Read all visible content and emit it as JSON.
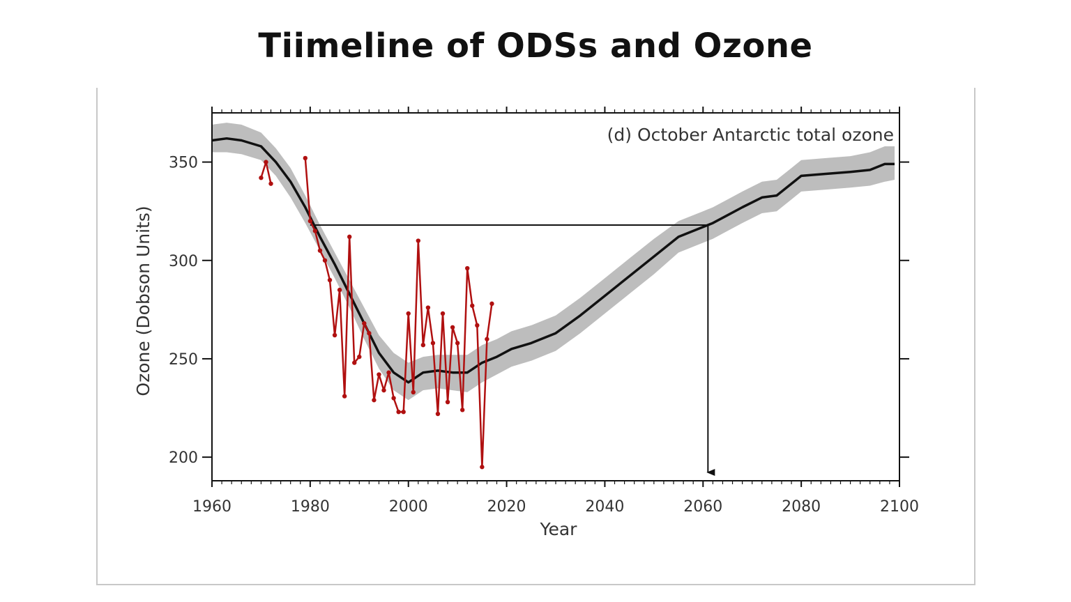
{
  "page": {
    "title": "Tiimeline of ODSs and Ozone"
  },
  "chart_data": {
    "type": "line",
    "panel_label": "(d) October Antarctic total ozone",
    "xlabel": "Year",
    "ylabel": "Ozone (Dobson Units)",
    "xlim": [
      1960,
      2100
    ],
    "ylim": [
      188,
      375
    ],
    "x_ticks": [
      1960,
      1980,
      2000,
      2020,
      2040,
      2060,
      2080,
      2100
    ],
    "y_ticks": [
      200,
      250,
      300,
      350
    ],
    "grid": false,
    "colors": {
      "model_mean": "#111111",
      "model_range": "#bdbdbd",
      "observations": "#b01010",
      "reference_lines": "#111111"
    },
    "series": [
      {
        "kind": "model-mean",
        "x": [
          1960,
          1963,
          1966,
          1970,
          1973,
          1976,
          1979,
          1982,
          1985,
          1988,
          1991,
          1994,
          1997,
          2000,
          2003,
          2006,
          2009,
          2012,
          2015,
          2018,
          2021,
          2025,
          2030,
          2035,
          2040,
          2045,
          2050,
          2055,
          2060,
          2062,
          2065,
          2068,
          2072,
          2075,
          2078,
          2080,
          2085,
          2090,
          2094,
          2097,
          2099
        ],
        "y": [
          361,
          362,
          361,
          358,
          350,
          340,
          327,
          312,
          298,
          283,
          268,
          253,
          243,
          238,
          243,
          244,
          243,
          243,
          248,
          251,
          255,
          258,
          263,
          272,
          282,
          292,
          302,
          312,
          317,
          319,
          323,
          327,
          332,
          333,
          339,
          343,
          344,
          345,
          346,
          349,
          349
        ]
      },
      {
        "kind": "model-range",
        "x": [
          1960,
          1963,
          1966,
          1970,
          1973,
          1976,
          1979,
          1982,
          1985,
          1988,
          1991,
          1994,
          1997,
          2000,
          2003,
          2006,
          2009,
          2012,
          2015,
          2018,
          2021,
          2025,
          2030,
          2035,
          2040,
          2045,
          2050,
          2055,
          2060,
          2062,
          2065,
          2068,
          2072,
          2075,
          2078,
          2080,
          2085,
          2090,
          2094,
          2097,
          2099
        ],
        "upper": [
          369,
          370,
          369,
          365,
          357,
          347,
          333,
          318,
          304,
          290,
          276,
          262,
          253,
          248,
          251,
          252,
          252,
          252,
          257,
          260,
          264,
          267,
          272,
          281,
          291,
          301,
          311,
          320,
          325,
          327,
          331,
          335,
          340,
          341,
          347,
          351,
          352,
          353,
          355,
          358,
          358
        ],
        "lower": [
          355,
          355,
          354,
          351,
          343,
          332,
          319,
          305,
          291,
          276,
          260,
          245,
          234,
          229,
          234,
          235,
          234,
          233,
          238,
          242,
          246,
          249,
          254,
          263,
          273,
          283,
          293,
          304,
          309,
          311,
          315,
          319,
          324,
          325,
          331,
          335,
          336,
          337,
          338,
          340,
          341
        ]
      },
      {
        "kind": "observations",
        "x": [
          1970,
          1971,
          1972,
          1979,
          1980,
          1981,
          1982,
          1983,
          1984,
          1985,
          1986,
          1987,
          1988,
          1989,
          1990,
          1991,
          1992,
          1993,
          1994,
          1995,
          1996,
          1997,
          1998,
          1999,
          2000,
          2001,
          2002,
          2003,
          2004,
          2005,
          2006,
          2007,
          2008,
          2009,
          2010,
          2011,
          2012,
          2013,
          2014,
          2015,
          2016,
          2017
        ],
        "y": [
          342,
          350,
          339,
          352,
          320,
          315,
          305,
          300,
          290,
          262,
          285,
          231,
          312,
          248,
          251,
          268,
          263,
          229,
          242,
          234,
          243,
          230,
          223,
          223,
          273,
          233,
          310,
          257,
          276,
          258,
          222,
          273,
          228,
          266,
          258,
          224,
          296,
          277,
          267,
          195,
          260,
          278
        ]
      },
      {
        "kind": "reference",
        "y_level": 318,
        "x_from": 1980,
        "x_to": 2061
      }
    ]
  }
}
